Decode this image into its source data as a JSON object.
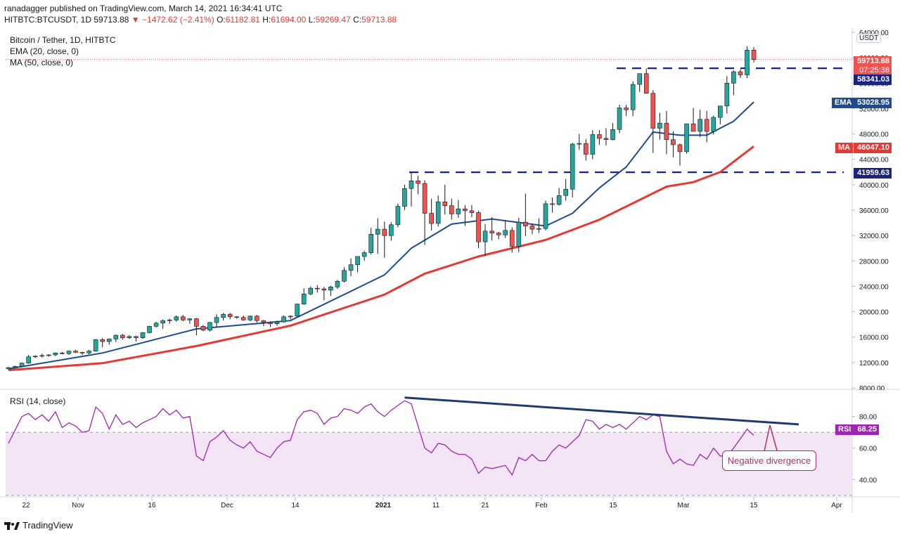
{
  "header": {
    "publisher_line": "ranadagger published on TradingView.com, March 14, 2021 16:34:41 UTC",
    "symbol": "HITBTC:BTCUSDT, 1D",
    "last": "59713.88",
    "change": "▼ −1472.62 (−2.41%)",
    "o_label": "O:",
    "o_value": "61182.81",
    "h_label": "H:",
    "h_value": "61694.00",
    "l_label": "L:",
    "l_value": "59269.47",
    "c_label": "C:",
    "c_value": "59713.88"
  },
  "legend": {
    "title": "Bitcoin / Tether, 1D, HITBTC",
    "ema": "EMA (20, close, 0)",
    "ma": "MA (50, close, 0)",
    "rsi": "RSI (14, close)"
  },
  "price_labels": {
    "unit": "USDT",
    "last_price": "59713.88",
    "countdown": "07:25:38",
    "resistance": "58341.03",
    "ema_tag": "EMA",
    "ema_value": "53028.95",
    "ma_tag": "MA",
    "ma_value": "46047.10",
    "support": "41959.63",
    "rsi_tag": "RSI",
    "rsi_value": "68.25"
  },
  "annotation": "Negative divergence",
  "footer": {
    "brand": "TradingView"
  },
  "colors": {
    "up": "#26a69a",
    "down": "#ef5350",
    "ema": "#1e4b8f",
    "ma": "#e53935",
    "rsi": "#9c27b0",
    "rsi_band": "#f3e5f5",
    "level": "#1a237e",
    "trendline": "#1e3a6e"
  },
  "chart_data": {
    "type": "candlestick",
    "y_ticks": [
      "64000.00",
      "60000.00",
      "56000.00",
      "52000.00",
      "48000.00",
      "44000.00",
      "40000.00",
      "36000.00",
      "32000.00",
      "28000.00",
      "24000.00",
      "20000.00",
      "16000.00",
      "12000.00",
      "8000.00"
    ],
    "ylim": [
      8000,
      64000
    ],
    "rsi_ticks": [
      "80.00",
      "60.00",
      "40.00"
    ],
    "rsi_ylim": [
      30,
      95
    ],
    "rsi_band": [
      30,
      70
    ],
    "x_ticks": [
      "22",
      "Nov",
      "16",
      "Dec",
      "14",
      "2021",
      "11",
      "21",
      "Feb",
      "15",
      "Mar",
      "15",
      "Apr"
    ],
    "horizontal_levels": [
      58341.03,
      41959.63
    ],
    "ohlc": [
      [
        11000,
        11300,
        10900,
        11200
      ],
      [
        11200,
        11500,
        11100,
        11400
      ],
      [
        11400,
        12000,
        11300,
        11900
      ],
      [
        11900,
        13200,
        11800,
        12900
      ],
      [
        12900,
        13100,
        12700,
        13000
      ],
      [
        13000,
        13400,
        12800,
        13100
      ],
      [
        13100,
        13300,
        12900,
        13200
      ],
      [
        13200,
        13600,
        13000,
        13500
      ],
      [
        13500,
        13700,
        13300,
        13400
      ],
      [
        13400,
        13900,
        13200,
        13800
      ],
      [
        13800,
        14000,
        13500,
        13600
      ],
      [
        13600,
        13700,
        13200,
        13500
      ],
      [
        13500,
        14000,
        13300,
        13800
      ],
      [
        13800,
        15700,
        13700,
        15600
      ],
      [
        15600,
        15900,
        14400,
        15300
      ],
      [
        15300,
        15800,
        14800,
        15700
      ],
      [
        15700,
        16400,
        15200,
        16300
      ],
      [
        16300,
        16500,
        15600,
        15900
      ],
      [
        15900,
        16300,
        15700,
        16100
      ],
      [
        16100,
        16200,
        15300,
        15900
      ],
      [
        15900,
        16800,
        15700,
        16700
      ],
      [
        16700,
        17800,
        16600,
        17700
      ],
      [
        17700,
        18400,
        17500,
        18200
      ],
      [
        18200,
        18800,
        17300,
        18600
      ],
      [
        18600,
        18900,
        18100,
        18700
      ],
      [
        18700,
        19400,
        18400,
        19200
      ],
      [
        19200,
        19500,
        18500,
        18700
      ],
      [
        18700,
        19000,
        18100,
        18900
      ],
      [
        18900,
        19000,
        16300,
        17700
      ],
      [
        17700,
        17900,
        16900,
        17100
      ],
      [
        17100,
        18400,
        16900,
        18300
      ],
      [
        18300,
        19600,
        17600,
        19100
      ],
      [
        19100,
        19800,
        18600,
        19600
      ],
      [
        19600,
        19800,
        18800,
        19200
      ],
      [
        19200,
        19300,
        18900,
        19100
      ],
      [
        19100,
        19400,
        18600,
        18700
      ],
      [
        18700,
        19400,
        18500,
        19300
      ],
      [
        19300,
        19500,
        18300,
        18600
      ],
      [
        18600,
        18700,
        17700,
        18300
      ],
      [
        18300,
        18500,
        17600,
        18100
      ],
      [
        18100,
        18600,
        17800,
        18400
      ],
      [
        18400,
        19400,
        18300,
        19200
      ],
      [
        19200,
        19400,
        18800,
        19300
      ],
      [
        19300,
        21300,
        19200,
        21200
      ],
      [
        21200,
        23700,
        21100,
        22800
      ],
      [
        22800,
        24000,
        22600,
        23700
      ],
      [
        23700,
        24200,
        23000,
        23600
      ],
      [
        23600,
        23900,
        21800,
        23400
      ],
      [
        23400,
        24100,
        22500,
        23900
      ],
      [
        23900,
        25000,
        23600,
        24800
      ],
      [
        24800,
        27000,
        24600,
        26500
      ],
      [
        26500,
        28400,
        25600,
        27400
      ],
      [
        27400,
        28700,
        26200,
        28700
      ],
      [
        28700,
        29600,
        28000,
        29300
      ],
      [
        29300,
        33200,
        29000,
        32200
      ],
      [
        32200,
        34700,
        29100,
        33000
      ],
      [
        33000,
        34200,
        28500,
        32000
      ],
      [
        32000,
        34100,
        31200,
        33700
      ],
      [
        33700,
        37000,
        33300,
        36600
      ],
      [
        36600,
        40000,
        36000,
        39400
      ],
      [
        39400,
        41900,
        36600,
        40600
      ],
      [
        40600,
        41400,
        38500,
        40200
      ],
      [
        40200,
        40700,
        30500,
        35500
      ],
      [
        35500,
        37800,
        32800,
        33900
      ],
      [
        33900,
        38300,
        33400,
        37300
      ],
      [
        37300,
        40000,
        35300,
        36700
      ],
      [
        36700,
        37800,
        34500,
        35400
      ],
      [
        35400,
        37600,
        34800,
        36200
      ],
      [
        36200,
        36800,
        33500,
        35900
      ],
      [
        35900,
        36800,
        34900,
        35600
      ],
      [
        35600,
        35900,
        30000,
        31000
      ],
      [
        31000,
        33800,
        28800,
        32700
      ],
      [
        32700,
        34900,
        31200,
        32400
      ],
      [
        32400,
        32600,
        31400,
        32100
      ],
      [
        32100,
        34400,
        31600,
        32800
      ],
      [
        32800,
        33300,
        29300,
        30300
      ],
      [
        30300,
        34800,
        29400,
        34100
      ],
      [
        34100,
        38600,
        31900,
        33500
      ],
      [
        33500,
        33900,
        32200,
        33000
      ],
      [
        33000,
        34700,
        32400,
        33100
      ],
      [
        33100,
        37500,
        32800,
        37000
      ],
      [
        37000,
        38000,
        35600,
        36900
      ],
      [
        36900,
        39500,
        36700,
        38300
      ],
      [
        38300,
        40900,
        37500,
        39300
      ],
      [
        39300,
        46600,
        38000,
        46400
      ],
      [
        46400,
        48000,
        45500,
        46500
      ],
      [
        46500,
        47200,
        43800,
        44800
      ],
      [
        44800,
        48600,
        44000,
        47900
      ],
      [
        47900,
        48600,
        46300,
        47300
      ],
      [
        47300,
        48900,
        46200,
        47100
      ],
      [
        47100,
        49700,
        47000,
        48700
      ],
      [
        48700,
        52600,
        48100,
        52100
      ],
      [
        52100,
        52600,
        50800,
        51800
      ],
      [
        51800,
        56300,
        50800,
        55800
      ],
      [
        55800,
        57500,
        54600,
        57500
      ],
      [
        57500,
        58300,
        54400,
        54400
      ],
      [
        54400,
        54900,
        45000,
        48900
      ],
      [
        48900,
        51300,
        47100,
        49700
      ],
      [
        49700,
        51600,
        44800,
        47100
      ],
      [
        47100,
        48400,
        44300,
        46300
      ],
      [
        46300,
        46500,
        43000,
        45200
      ],
      [
        45200,
        49500,
        44900,
        49600
      ],
      [
        49600,
        52100,
        48400,
        48400
      ],
      [
        48400,
        51800,
        47500,
        50300
      ],
      [
        50300,
        51600,
        46700,
        48400
      ],
      [
        48400,
        50900,
        47900,
        50600
      ],
      [
        50600,
        52400,
        49500,
        52400
      ],
      [
        52400,
        57100,
        51200,
        56000
      ],
      [
        56000,
        58000,
        54100,
        57800
      ],
      [
        57800,
        58200,
        56800,
        57300
      ],
      [
        57300,
        61800,
        56800,
        61200
      ],
      [
        61200,
        61694,
        59269,
        59714
      ]
    ],
    "ema20": [
      [
        0,
        11000
      ],
      [
        14,
        13500
      ],
      [
        28,
        17300
      ],
      [
        42,
        18600
      ],
      [
        56,
        25800
      ],
      [
        60,
        30000
      ],
      [
        66,
        33800
      ],
      [
        72,
        34600
      ],
      [
        80,
        33500
      ],
      [
        84,
        35500
      ],
      [
        88,
        39500
      ],
      [
        92,
        42800
      ],
      [
        96,
        48300
      ],
      [
        100,
        47800
      ],
      [
        104,
        47800
      ],
      [
        108,
        50000
      ],
      [
        111,
        53029
      ]
    ],
    "ma50": [
      [
        0,
        10800
      ],
      [
        14,
        11900
      ],
      [
        28,
        14600
      ],
      [
        42,
        17800
      ],
      [
        56,
        22700
      ],
      [
        62,
        26000
      ],
      [
        70,
        28700
      ],
      [
        80,
        31300
      ],
      [
        88,
        34500
      ],
      [
        94,
        37600
      ],
      [
        98,
        39700
      ],
      [
        102,
        40400
      ],
      [
        106,
        42000
      ],
      [
        111,
        46047
      ]
    ],
    "rsi": [
      [
        0,
        63
      ],
      [
        2,
        80
      ],
      [
        3,
        82
      ],
      [
        4,
        78
      ],
      [
        5,
        81
      ],
      [
        6,
        77
      ],
      [
        7,
        83
      ],
      [
        8,
        73
      ],
      [
        9,
        76
      ],
      [
        10,
        74
      ],
      [
        11,
        70
      ],
      [
        12,
        71
      ],
      [
        13,
        86
      ],
      [
        14,
        82
      ],
      [
        15,
        72
      ],
      [
        16,
        81
      ],
      [
        17,
        75
      ],
      [
        18,
        77
      ],
      [
        19,
        73
      ],
      [
        20,
        76
      ],
      [
        21,
        78
      ],
      [
        22,
        80
      ],
      [
        23,
        85
      ],
      [
        24,
        81
      ],
      [
        25,
        84
      ],
      [
        26,
        79
      ],
      [
        27,
        80
      ],
      [
        28,
        55
      ],
      [
        29,
        52
      ],
      [
        30,
        64
      ],
      [
        31,
        67
      ],
      [
        32,
        71
      ],
      [
        33,
        65
      ],
      [
        34,
        62
      ],
      [
        35,
        60
      ],
      [
        36,
        64
      ],
      [
        37,
        58
      ],
      [
        38,
        56
      ],
      [
        39,
        54
      ],
      [
        40,
        60
      ],
      [
        41,
        64
      ],
      [
        42,
        65
      ],
      [
        43,
        78
      ],
      [
        44,
        83
      ],
      [
        45,
        84
      ],
      [
        46,
        82
      ],
      [
        47,
        75
      ],
      [
        48,
        79
      ],
      [
        49,
        80
      ],
      [
        50,
        85
      ],
      [
        51,
        84
      ],
      [
        52,
        82
      ],
      [
        53,
        86
      ],
      [
        54,
        88
      ],
      [
        55,
        83
      ],
      [
        56,
        80
      ],
      [
        57,
        84
      ],
      [
        58,
        87
      ],
      [
        59,
        90
      ],
      [
        60,
        88
      ],
      [
        62,
        60
      ],
      [
        63,
        57
      ],
      [
        64,
        63
      ],
      [
        65,
        62
      ],
      [
        66,
        58
      ],
      [
        67,
        56
      ],
      [
        68,
        56
      ],
      [
        69,
        53
      ],
      [
        70,
        44
      ],
      [
        71,
        48
      ],
      [
        72,
        47
      ],
      [
        73,
        48
      ],
      [
        74,
        49
      ],
      [
        75,
        43
      ],
      [
        76,
        54
      ],
      [
        77,
        52
      ],
      [
        78,
        56
      ],
      [
        79,
        52
      ],
      [
        80,
        52
      ],
      [
        81,
        58
      ],
      [
        82,
        62
      ],
      [
        83,
        60
      ],
      [
        84,
        64
      ],
      [
        85,
        68
      ],
      [
        86,
        78
      ],
      [
        87,
        77
      ],
      [
        88,
        72
      ],
      [
        89,
        75
      ],
      [
        90,
        73
      ],
      [
        91,
        75
      ],
      [
        92,
        72
      ],
      [
        93,
        76
      ],
      [
        94,
        80
      ],
      [
        95,
        78
      ],
      [
        96,
        81
      ],
      [
        97,
        80
      ],
      [
        98,
        58
      ],
      [
        99,
        50
      ],
      [
        100,
        53
      ],
      [
        101,
        50
      ],
      [
        102,
        49
      ],
      [
        103,
        56
      ],
      [
        104,
        53
      ],
      [
        105,
        60
      ],
      [
        106,
        55
      ],
      [
        107,
        55
      ],
      [
        108,
        60
      ],
      [
        109,
        66
      ],
      [
        110,
        72
      ],
      [
        111,
        68
      ]
    ],
    "rsi_trendline": [
      [
        59,
        92
      ],
      [
        111,
        75
      ]
    ]
  }
}
